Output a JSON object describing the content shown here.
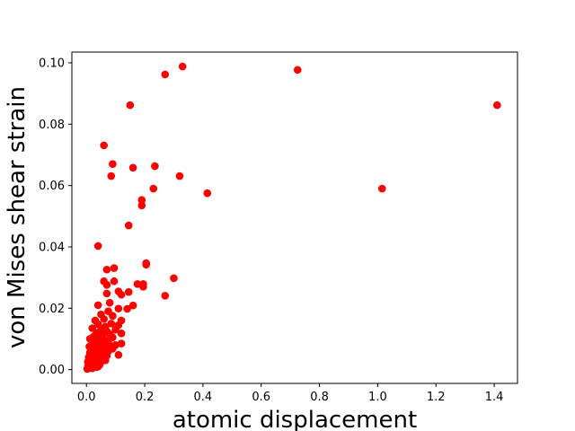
{
  "chart_data": {
    "type": "scatter",
    "title": "",
    "xlabel": "atomic displacement",
    "ylabel": "von Mises shear strain",
    "xlim": [
      -0.05,
      1.48
    ],
    "ylim": [
      -0.0045,
      0.1035
    ],
    "xticks": [
      0.0,
      0.2,
      0.4,
      0.6,
      0.8,
      1.0,
      1.2,
      1.4
    ],
    "xtick_labels": [
      "0.0",
      "0.2",
      "0.4",
      "0.6",
      "0.8",
      "1.0",
      "1.2",
      "1.4"
    ],
    "yticks": [
      0.0,
      0.02,
      0.04,
      0.06,
      0.08,
      0.1
    ],
    "ytick_labels": [
      "0.00",
      "0.02",
      "0.04",
      "0.06",
      "0.08",
      "0.10"
    ],
    "grid": false,
    "legend": "none",
    "marker_color": "#ff0000",
    "points": [
      [
        0.27,
        0.0962
      ],
      [
        0.33,
        0.0988
      ],
      [
        0.725,
        0.0977
      ],
      [
        1.41,
        0.0862
      ],
      [
        0.15,
        0.0862
      ],
      [
        0.06,
        0.0731
      ],
      [
        0.09,
        0.067
      ],
      [
        0.085,
        0.0631
      ],
      [
        0.16,
        0.0658
      ],
      [
        0.235,
        0.0663
      ],
      [
        0.32,
        0.0631
      ],
      [
        0.23,
        0.059
      ],
      [
        0.415,
        0.0575
      ],
      [
        1.015,
        0.059
      ],
      [
        0.19,
        0.0553
      ],
      [
        0.19,
        0.0535
      ],
      [
        0.145,
        0.047
      ],
      [
        0.04,
        0.0403
      ],
      [
        0.205,
        0.0347
      ],
      [
        0.205,
        0.0342
      ],
      [
        0.07,
        0.0326
      ],
      [
        0.095,
        0.0331
      ],
      [
        0.3,
        0.0298
      ],
      [
        0.06,
        0.0288
      ],
      [
        0.095,
        0.0288
      ],
      [
        0.175,
        0.0279
      ],
      [
        0.195,
        0.0279
      ],
      [
        0.195,
        0.027
      ],
      [
        0.07,
        0.0276
      ],
      [
        0.145,
        0.0253
      ],
      [
        0.27,
        0.0241
      ],
      [
        0.11,
        0.0255
      ],
      [
        0.12,
        0.0244
      ],
      [
        0.07,
        0.0248
      ],
      [
        0.16,
        0.0209
      ],
      [
        0.14,
        0.0198
      ],
      [
        0.08,
        0.0218
      ],
      [
        0.04,
        0.021
      ],
      [
        0.11,
        0.0199
      ],
      [
        0.075,
        0.019
      ],
      [
        0.05,
        0.018
      ],
      [
        0.09,
        0.0175
      ],
      [
        0.12,
        0.016
      ],
      [
        0.06,
        0.0165
      ],
      [
        0.03,
        0.016
      ],
      [
        0.085,
        0.015
      ],
      [
        0.11,
        0.0145
      ],
      [
        0.04,
        0.0148
      ],
      [
        0.065,
        0.014
      ],
      [
        0.02,
        0.0135
      ],
      [
        0.05,
        0.013
      ],
      [
        0.1,
        0.013
      ],
      [
        0.07,
        0.0125
      ],
      [
        0.035,
        0.012
      ],
      [
        0.12,
        0.0118
      ],
      [
        0.08,
        0.0115
      ],
      [
        0.055,
        0.011
      ],
      [
        0.025,
        0.0108
      ],
      [
        0.045,
        0.01
      ],
      [
        0.09,
        0.0105
      ],
      [
        0.015,
        0.0098
      ],
      [
        0.065,
        0.0095
      ],
      [
        0.035,
        0.0092
      ],
      [
        0.075,
        0.009
      ],
      [
        0.12,
        0.0085
      ],
      [
        0.1,
        0.008
      ],
      [
        0.025,
        0.0085
      ],
      [
        0.055,
        0.0082
      ],
      [
        0.045,
        0.0078
      ],
      [
        0.085,
        0.0075
      ],
      [
        0.01,
        0.0075
      ],
      [
        0.03,
        0.007
      ],
      [
        0.065,
        0.0068
      ],
      [
        0.02,
        0.0065
      ],
      [
        0.05,
        0.006
      ],
      [
        0.04,
        0.0058
      ],
      [
        0.075,
        0.006
      ],
      [
        0.012,
        0.0055
      ],
      [
        0.03,
        0.005
      ],
      [
        0.06,
        0.005
      ],
      [
        0.02,
        0.0045
      ],
      [
        0.045,
        0.0042
      ],
      [
        0.008,
        0.004
      ],
      [
        0.035,
        0.0035
      ],
      [
        0.055,
        0.0038
      ],
      [
        0.015,
        0.0032
      ],
      [
        0.025,
        0.0028
      ],
      [
        0.04,
        0.0025
      ],
      [
        0.005,
        0.0025
      ],
      [
        0.03,
        0.002
      ],
      [
        0.018,
        0.0018
      ],
      [
        0.01,
        0.0015
      ],
      [
        0.045,
        0.0015
      ],
      [
        0.025,
        0.0012
      ],
      [
        0.005,
        0.001
      ],
      [
        0.015,
        0.0008
      ],
      [
        0.035,
        0.0008
      ],
      [
        0.008,
        0.0005
      ],
      [
        0.02,
        0.0004
      ],
      [
        0.003,
        0.0002
      ],
      [
        0.11,
        0.0048
      ],
      [
        0.09,
        0.0068
      ],
      [
        0.07,
        0.0045
      ],
      [
        0.01,
        0.002
      ],
      [
        0.028,
        0.004
      ],
      [
        0.05,
        0.0025
      ],
      [
        0.065,
        0.003
      ],
      [
        0.04,
        0.001
      ],
      [
        0.012,
        0.01
      ],
      [
        0.02,
        0.008
      ]
    ]
  }
}
